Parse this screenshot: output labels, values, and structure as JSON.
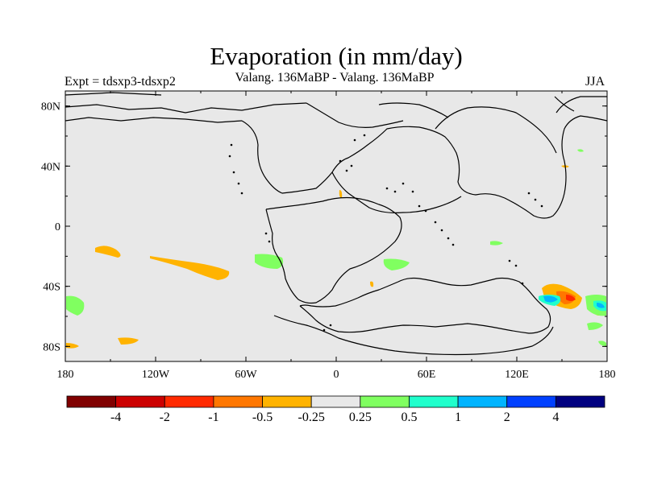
{
  "title": "Evaporation (in mm/day)",
  "subtitle": "Valang. 136MaBP - Valang. 136MaBP",
  "left_label": "Expt = tdsxp3-tdsxp2",
  "right_label": "JJA",
  "lat_ticks": [
    {
      "value": 80,
      "label": "80N"
    },
    {
      "value": 40,
      "label": "40N"
    },
    {
      "value": 0,
      "label": "0"
    },
    {
      "value": -40,
      "label": "40S"
    },
    {
      "value": -80,
      "label": "80S"
    }
  ],
  "lon_ticks": [
    {
      "value": -180,
      "label": "180"
    },
    {
      "value": -120,
      "label": "120W"
    },
    {
      "value": -60,
      "label": "60W"
    },
    {
      "value": 0,
      "label": "0"
    },
    {
      "value": 60,
      "label": "60E"
    },
    {
      "value": 120,
      "label": "120E"
    },
    {
      "value": 180,
      "label": "180"
    }
  ],
  "colorbar": {
    "colors": [
      "#800000",
      "#cc0000",
      "#ff2a00",
      "#ff7700",
      "#ffb300",
      "#e8e8e8",
      "#80ff60",
      "#20ffcc",
      "#00b4ff",
      "#0040ff",
      "#000080"
    ],
    "labels": [
      "-4",
      "-2",
      "-1",
      "-0.5",
      "-0.25",
      "0.25",
      "0.5",
      "1",
      "2",
      "4"
    ]
  },
  "colors": {
    "background_field": "#e8e8e8",
    "coastline": "#000000"
  }
}
